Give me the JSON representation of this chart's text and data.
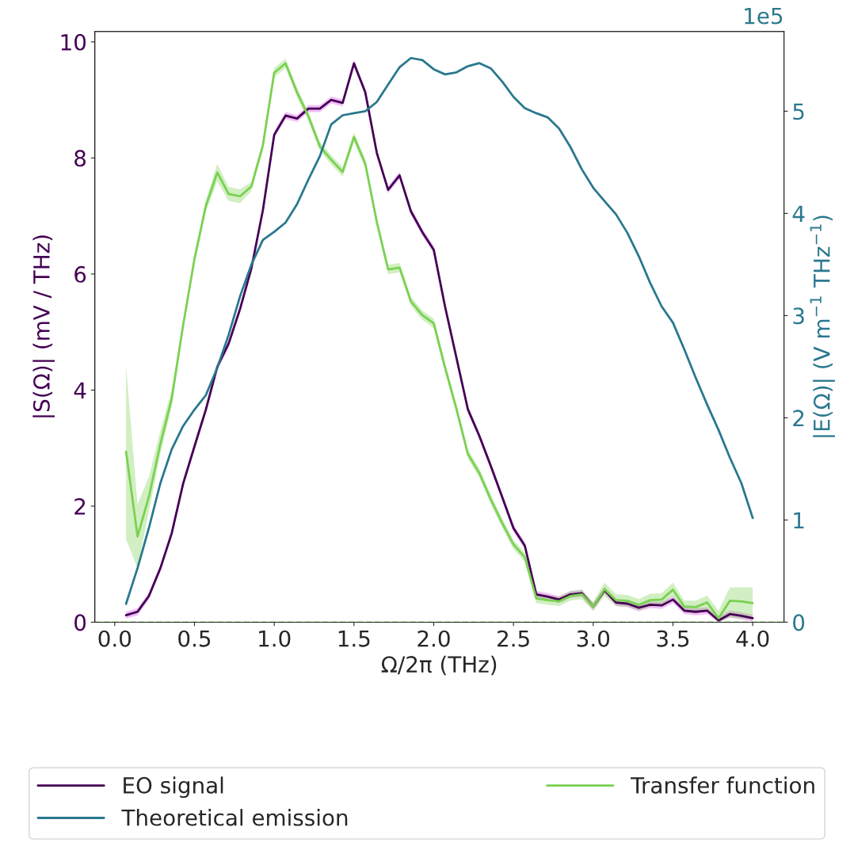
{
  "chart_data": {
    "type": "line",
    "xlabel": "Ω/2π (THz)",
    "ylabel": "|S(Ω)| (mV / THz)",
    "y2label": "|E(Ω)| (V m$^{−1}$ THz$^{−1}$)",
    "annotations": [
      "1e5"
    ],
    "x": [
      0.071,
      0.143,
      0.214,
      0.286,
      0.357,
      0.429,
      0.5,
      0.571,
      0.643,
      0.714,
      0.786,
      0.857,
      0.929,
      1.0,
      1.071,
      1.143,
      1.214,
      1.286,
      1.357,
      1.429,
      1.5,
      1.571,
      1.643,
      1.714,
      1.786,
      1.857,
      1.929,
      2.0,
      2.071,
      2.143,
      2.214,
      2.286,
      2.357,
      2.429,
      2.5,
      2.571,
      2.643,
      2.714,
      2.786,
      2.857,
      2.929,
      3.0,
      3.071,
      3.143,
      3.214,
      3.286,
      3.357,
      3.429,
      3.5,
      3.571,
      3.643,
      3.714,
      3.786,
      3.857,
      3.929,
      4.0
    ],
    "series": [
      {
        "name": "EO signal",
        "color": "#440154",
        "values": [
          0.12,
          0.18,
          0.45,
          0.93,
          1.53,
          2.39,
          3.03,
          3.66,
          4.4,
          4.8,
          5.4,
          6.1,
          7.1,
          8.4,
          8.73,
          8.68,
          8.85,
          8.85,
          9.0,
          8.95,
          9.63,
          9.13,
          8.09,
          7.45,
          7.7,
          7.08,
          6.72,
          6.42,
          5.44,
          4.55,
          3.67,
          3.21,
          2.7,
          2.16,
          1.62,
          1.32,
          0.48,
          0.44,
          0.39,
          0.48,
          0.5,
          0.27,
          0.55,
          0.34,
          0.32,
          0.25,
          0.3,
          0.29,
          0.39,
          0.2,
          0.18,
          0.2,
          0.03,
          0.14,
          0.11,
          0.07
        ],
        "lower": [
          0.06,
          0.12,
          0.39,
          0.87,
          1.47,
          2.33,
          2.97,
          3.6,
          4.34,
          4.74,
          5.34,
          6.04,
          7.04,
          8.34,
          8.67,
          8.62,
          8.79,
          8.79,
          8.94,
          8.89,
          9.57,
          9.07,
          8.03,
          7.39,
          7.64,
          7.02,
          6.66,
          6.36,
          5.38,
          4.49,
          3.61,
          3.15,
          2.64,
          2.1,
          1.56,
          1.26,
          0.42,
          0.38,
          0.33,
          0.42,
          0.44,
          0.21,
          0.49,
          0.28,
          0.26,
          0.19,
          0.24,
          0.23,
          0.33,
          0.14,
          0.12,
          0.14,
          0.0,
          0.08,
          0.05,
          0.01
        ],
        "upper": [
          0.18,
          0.24,
          0.51,
          0.99,
          1.59,
          2.45,
          3.09,
          3.72,
          4.46,
          4.86,
          5.46,
          6.16,
          7.16,
          8.46,
          8.79,
          8.74,
          8.91,
          8.91,
          9.06,
          9.01,
          9.69,
          9.19,
          8.15,
          7.51,
          7.76,
          7.14,
          6.78,
          6.48,
          5.5,
          4.61,
          3.73,
          3.27,
          2.76,
          2.22,
          1.68,
          1.38,
          0.54,
          0.5,
          0.45,
          0.54,
          0.56,
          0.33,
          0.61,
          0.4,
          0.38,
          0.31,
          0.36,
          0.35,
          0.45,
          0.26,
          0.24,
          0.26,
          0.09,
          0.2,
          0.17,
          0.13
        ]
      },
      {
        "name": "Theoretical emission",
        "color": "#2a788e",
        "axis": "y2",
        "values": [
          0.18,
          0.53,
          0.92,
          1.36,
          1.69,
          1.92,
          2.08,
          2.22,
          2.49,
          2.81,
          3.19,
          3.5,
          3.74,
          3.82,
          3.91,
          4.09,
          4.33,
          4.56,
          4.87,
          4.96,
          4.98,
          5.0,
          5.09,
          5.26,
          5.43,
          5.52,
          5.5,
          5.41,
          5.36,
          5.38,
          5.44,
          5.47,
          5.42,
          5.29,
          5.14,
          5.03,
          4.98,
          4.94,
          4.83,
          4.65,
          4.43,
          4.25,
          4.12,
          3.99,
          3.81,
          3.58,
          3.32,
          3.09,
          2.93,
          2.67,
          2.39,
          2.13,
          1.88,
          1.61,
          1.36,
          1.02
        ]
      },
      {
        "name": "Transfer function",
        "color": "#7ad151",
        "values": [
          2.94,
          1.48,
          2.16,
          3.07,
          3.85,
          5.12,
          6.26,
          7.17,
          7.75,
          7.38,
          7.34,
          7.51,
          8.22,
          9.47,
          9.63,
          9.13,
          8.72,
          8.2,
          7.97,
          7.76,
          8.36,
          7.9,
          6.9,
          6.08,
          6.11,
          5.53,
          5.29,
          5.15,
          4.39,
          3.67,
          2.9,
          2.57,
          2.12,
          1.71,
          1.34,
          1.12,
          0.41,
          0.38,
          0.36,
          0.45,
          0.48,
          0.27,
          0.57,
          0.38,
          0.37,
          0.3,
          0.38,
          0.39,
          0.56,
          0.27,
          0.26,
          0.34,
          0.07,
          0.37,
          0.36,
          0.33
        ],
        "lower": [
          1.43,
          0.93,
          1.9,
          2.9,
          3.7,
          5.04,
          6.18,
          7.07,
          7.6,
          7.26,
          7.22,
          7.43,
          8.14,
          9.39,
          9.55,
          9.05,
          8.64,
          8.12,
          7.89,
          7.68,
          8.28,
          7.82,
          6.82,
          6.0,
          6.03,
          5.45,
          5.21,
          5.07,
          4.31,
          3.59,
          2.82,
          2.49,
          2.04,
          1.63,
          1.26,
          1.04,
          0.33,
          0.3,
          0.28,
          0.37,
          0.4,
          0.19,
          0.45,
          0.28,
          0.27,
          0.2,
          0.27,
          0.28,
          0.45,
          0.17,
          0.15,
          0.22,
          0.0,
          0.08,
          0.06,
          0.05
        ],
        "upper": [
          4.42,
          2.03,
          2.5,
          3.3,
          4.0,
          5.2,
          6.34,
          7.27,
          7.9,
          7.5,
          7.46,
          7.59,
          8.3,
          9.55,
          9.71,
          9.21,
          8.8,
          8.28,
          8.05,
          7.84,
          8.44,
          7.98,
          6.98,
          6.16,
          6.19,
          5.61,
          5.37,
          5.23,
          4.47,
          3.75,
          2.98,
          2.65,
          2.2,
          1.79,
          1.42,
          1.2,
          0.49,
          0.46,
          0.44,
          0.53,
          0.56,
          0.35,
          0.68,
          0.48,
          0.47,
          0.4,
          0.49,
          0.5,
          0.68,
          0.37,
          0.37,
          0.46,
          0.2,
          0.6,
          0.6,
          0.6
        ]
      }
    ],
    "ref_lines": [
      {
        "axis": "y",
        "value": 0,
        "color": "#7ad151",
        "line_style": "dashed"
      }
    ],
    "xlim": [
      -0.125,
      4.196
    ],
    "xticks": [
      {
        "value": 0,
        "label": "0.0"
      },
      {
        "value": 0.5,
        "label": "0.5"
      },
      {
        "value": 1,
        "label": "1.0"
      },
      {
        "value": 1.5,
        "label": "1.5"
      },
      {
        "value": 2,
        "label": "2.0"
      },
      {
        "value": 2.5,
        "label": "2.5"
      },
      {
        "value": 3,
        "label": "3.0"
      },
      {
        "value": 3.5,
        "label": "3.5"
      },
      {
        "value": 4,
        "label": "4.0"
      }
    ],
    "ylim": [
      0,
      10.18
    ],
    "yticks": [
      0,
      2,
      4,
      6,
      8,
      10
    ],
    "y2lim": [
      0,
      5.78
    ],
    "y2ticks": [
      0,
      1,
      2,
      3,
      4,
      5
    ],
    "grid": false,
    "legend": "bottom",
    "marker": "none",
    "line_style": "solid"
  }
}
